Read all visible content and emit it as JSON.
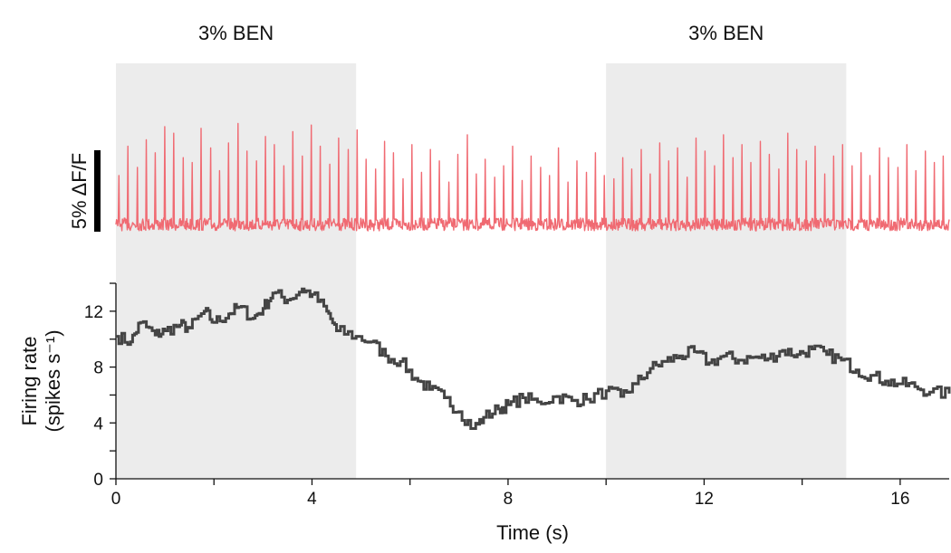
{
  "chart_data": {
    "type": "line",
    "stimulus": {
      "label": "3% BEN",
      "epochs": [
        [
          0,
          4.9
        ],
        [
          10,
          14.9
        ]
      ],
      "shade_color": "#ececec"
    },
    "scale_bar": {
      "label": "5% ΔF/F",
      "value_percent": 5
    },
    "trace_color": "#f06a72",
    "rate_color": "#444444",
    "xlabel": "Time (s)",
    "ylabel_line1": "Firing rate",
    "ylabel_line2": "(spikes s⁻¹)",
    "xlim": [
      0,
      17
    ],
    "ylim": [
      0,
      14
    ],
    "x_ticks": [
      0,
      4,
      8,
      12,
      16
    ],
    "x_ticklabels": [
      "0",
      "4",
      "8",
      "12",
      "16"
    ],
    "y_ticks": [
      0,
      4,
      8,
      12
    ],
    "y_ticklabels": [
      "0",
      "4",
      "8",
      "12"
    ],
    "firing_rate": {
      "x": [
        0,
        0.3,
        0.5,
        0.8,
        1.0,
        1.3,
        1.5,
        1.8,
        2.0,
        2.3,
        2.5,
        2.8,
        3.0,
        3.2,
        3.5,
        3.8,
        4.0,
        4.3,
        4.5,
        4.9,
        5.2,
        5.5,
        5.8,
        6.1,
        6.4,
        6.7,
        7.0,
        7.3,
        7.5,
        7.8,
        8.0,
        8.3,
        8.6,
        9.0,
        9.3,
        9.6,
        10.0,
        10.3,
        10.6,
        10.9,
        11.2,
        11.5,
        11.8,
        12.1,
        12.4,
        12.7,
        13.0,
        13.3,
        13.6,
        13.9,
        14.2,
        14.5,
        14.8,
        15.1,
        15.4,
        15.7,
        16.0,
        16.3,
        16.6,
        17.0
      ],
      "y": [
        10.2,
        9.8,
        11.2,
        10.3,
        10.6,
        11.0,
        10.8,
        12.0,
        11.2,
        11.8,
        12.3,
        11.5,
        12.2,
        13.3,
        12.8,
        13.6,
        13.2,
        12.0,
        10.6,
        10.2,
        9.8,
        8.8,
        8.4,
        7.2,
        6.4,
        5.8,
        4.8,
        3.6,
        4.4,
        5.0,
        5.3,
        5.8,
        5.5,
        5.9,
        5.6,
        5.7,
        6.3,
        5.9,
        6.8,
        7.9,
        8.4,
        8.8,
        9.1,
        8.3,
        8.8,
        8.5,
        8.7,
        8.6,
        9.2,
        8.9,
        9.3,
        8.9,
        8.5,
        7.8,
        7.4,
        7.0,
        6.8,
        6.6,
        6.2,
        6.1
      ]
    },
    "dff_spikes_percent": [
      3.0,
      4.8,
      3.5,
      5.2,
      4.4,
      6.0,
      5.6,
      4.1,
      3.8,
      5.9,
      4.7,
      3.3,
      5.0,
      6.2,
      4.5,
      3.9,
      5.4,
      4.9,
      3.6,
      5.7,
      4.2,
      6.1,
      4.8,
      3.7,
      5.3,
      4.6,
      5.8,
      4.0,
      3.4,
      5.1,
      4.4,
      2.8,
      4.9,
      3.2,
      4.6,
      3.9,
      2.6,
      4.3,
      5.5,
      3.1,
      4.0,
      2.9,
      3.6,
      4.8,
      2.7,
      4.2,
      3.5,
      3.0,
      4.7,
      2.6,
      3.9,
      3.2,
      4.4,
      3.0,
      2.8,
      4.1,
      3.4,
      4.6,
      3.1,
      5.0,
      3.9,
      4.7,
      2.9,
      5.3,
      4.5,
      3.6,
      5.5,
      4.1,
      4.9,
      3.8,
      5.1,
      4.3,
      3.4,
      5.6,
      4.6,
      3.9,
      4.8,
      3.1,
      4.2,
      4.9,
      3.6,
      4.4,
      3.0,
      4.7,
      4.1,
      3.5,
      4.9,
      3.3,
      4.5,
      3.8,
      4.2
    ]
  }
}
